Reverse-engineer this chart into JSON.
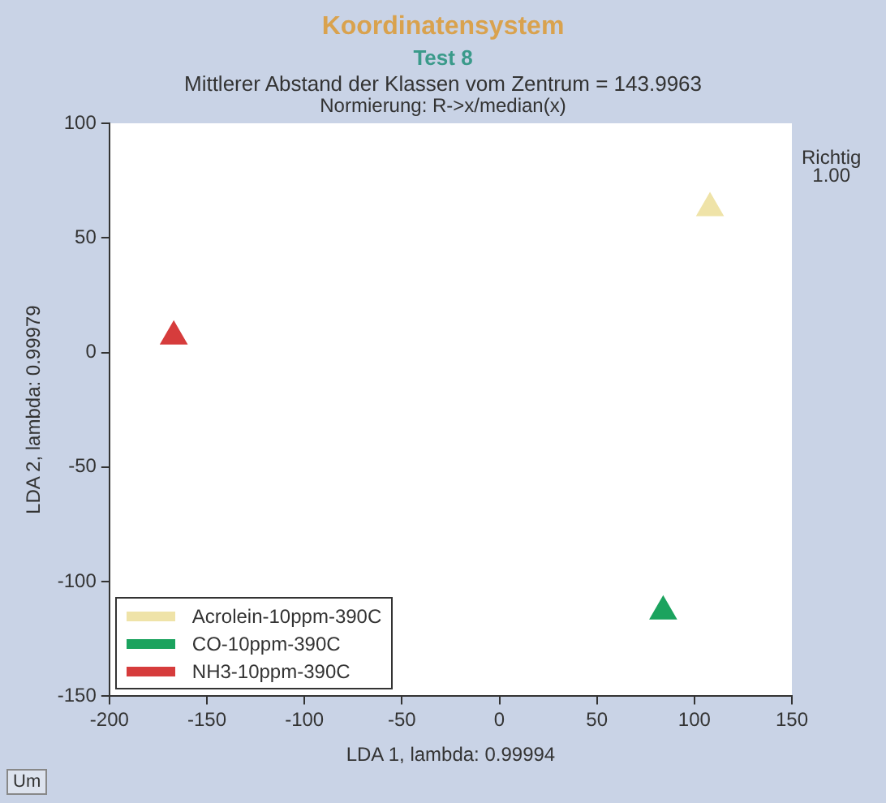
{
  "chart_data": {
    "type": "scatter",
    "title": "Koordinatensystem",
    "subtitle": "Test 8",
    "annotations": [
      "Mittlerer Abstand der Klassen vom Zentrum = 143.9963",
      "Normierung:  R->x/median(x)",
      "Richtig",
      "1.00",
      "Um"
    ],
    "xlabel": "LDA 1, lambda: 0.99994",
    "ylabel": "LDA 2, lambda: 0.99979",
    "series": [
      {
        "name": "Acrolein-10ppm-390C",
        "color": "#efe3a8",
        "x": [
          108
        ],
        "values": [
          63
        ]
      },
      {
        "name": "CO-10ppm-390C",
        "color": "#1ba35e",
        "x": [
          84
        ],
        "values": [
          -113
        ]
      },
      {
        "name": "NH3-10ppm-390C",
        "color": "#d63c3c",
        "x": [
          -167
        ],
        "values": [
          7
        ]
      }
    ],
    "xlim": [
      -200,
      150
    ],
    "xticks": [
      -200,
      -150,
      -100,
      -50,
      0,
      50,
      100,
      150
    ],
    "ylim": [
      -150,
      100
    ],
    "yticks": [
      -150,
      -100,
      -50,
      0,
      50,
      100
    ],
    "grid": false,
    "legend": "bottom left",
    "marker": "triangle"
  }
}
